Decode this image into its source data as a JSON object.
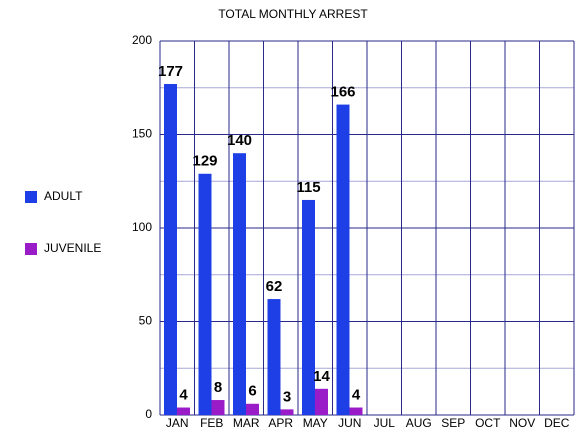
{
  "chart_data": {
    "type": "bar",
    "title": "TOTAL MONTHLY ARREST",
    "categories": [
      "JAN",
      "FEB",
      "MAR",
      "APR",
      "MAY",
      "JUN",
      "JUL",
      "AUG",
      "SEP",
      "OCT",
      "NOV",
      "DEC"
    ],
    "series": [
      {
        "name": "ADULT",
        "color": "#1f3fe6",
        "values": [
          177,
          129,
          140,
          62,
          115,
          166,
          null,
          null,
          null,
          null,
          null,
          null
        ]
      },
      {
        "name": "JUVENILE",
        "color": "#9a1cc8",
        "values": [
          4,
          8,
          6,
          3,
          14,
          4,
          null,
          null,
          null,
          null,
          null,
          null
        ]
      }
    ],
    "ylim": [
      0,
      200
    ],
    "yticks": [
      0,
      50,
      100,
      150,
      200
    ],
    "y_minor_ticks": [
      25,
      75,
      125,
      175
    ],
    "grid": true,
    "legend": "left"
  }
}
